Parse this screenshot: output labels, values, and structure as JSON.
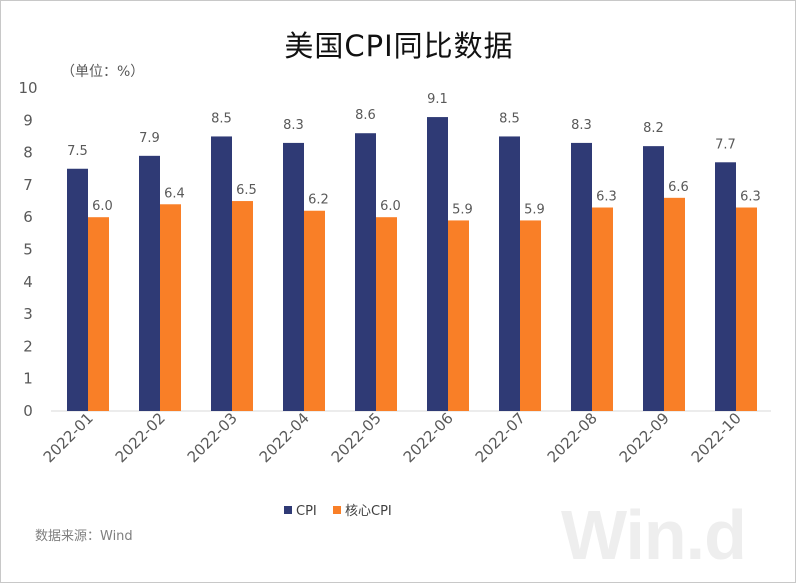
{
  "chart_data": {
    "type": "bar",
    "title": "美国CPI同比数据",
    "unit_label": "（单位：%）",
    "ylim": [
      0,
      10
    ],
    "yticks": [
      "0",
      "1",
      "2",
      "3",
      "4",
      "5",
      "6",
      "7",
      "8",
      "9",
      "10"
    ],
    "grid": false,
    "legend_position": "bottom",
    "categories": [
      "2022-01",
      "2022-02",
      "2022-03",
      "2022-04",
      "2022-05",
      "2022-06",
      "2022-07",
      "2022-08",
      "2022-09",
      "2022-10"
    ],
    "series": [
      {
        "name": "CPI",
        "color": "#2f3a75",
        "values": [
          7.5,
          7.9,
          8.5,
          8.3,
          8.6,
          9.1,
          8.5,
          8.3,
          8.2,
          7.7
        ],
        "labels": [
          "7.5",
          "7.9",
          "8.5",
          "8.3",
          "8.6",
          "9.1",
          "8.5",
          "8.3",
          "8.2",
          "7.7"
        ]
      },
      {
        "name": "核心CPI",
        "color": "#f97f27",
        "values": [
          6.0,
          6.4,
          6.5,
          6.2,
          6.0,
          5.9,
          5.9,
          6.3,
          6.6,
          6.3
        ],
        "labels": [
          "6.0",
          "6.4",
          "6.5",
          "6.2",
          "6.0",
          "5.9",
          "5.9",
          "6.3",
          "6.6",
          "6.3"
        ]
      }
    ]
  },
  "footer": {
    "source": "数据来源：Wind",
    "watermark": "Win.d"
  }
}
